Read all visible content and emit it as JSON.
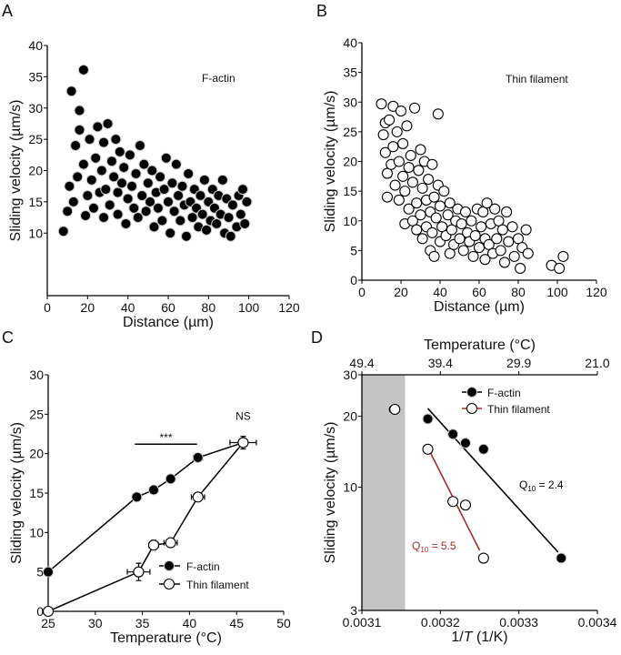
{
  "chart_data": [
    {
      "panel": "A",
      "type": "scatter",
      "annotation": "F-actin",
      "xlabel": "Distance (µm)",
      "ylabel": "Sliding velocity (µm/s)",
      "xlim": [
        0,
        120
      ],
      "ylim": [
        0,
        40
      ],
      "xticks": [
        0,
        20,
        40,
        60,
        80,
        100,
        120
      ],
      "yticks": [
        10,
        15,
        20,
        25,
        30,
        35,
        40
      ],
      "marker": "filled",
      "points": [
        [
          8,
          10.3
        ],
        [
          10,
          13.5
        ],
        [
          11,
          17.5
        ],
        [
          12,
          32.7
        ],
        [
          13,
          15
        ],
        [
          14,
          24
        ],
        [
          15,
          19
        ],
        [
          16,
          26.5
        ],
        [
          16,
          29.6
        ],
        [
          18,
          36.1
        ],
        [
          18,
          21
        ],
        [
          19,
          12.8
        ],
        [
          20,
          16
        ],
        [
          21,
          25
        ],
        [
          22,
          18.5
        ],
        [
          23,
          14
        ],
        [
          24,
          22
        ],
        [
          25,
          27
        ],
        [
          26,
          16.5
        ],
        [
          27,
          20
        ],
        [
          28,
          12.5
        ],
        [
          28,
          24.5
        ],
        [
          29,
          17
        ],
        [
          30,
          27.5
        ],
        [
          31,
          14.5
        ],
        [
          32,
          21.5
        ],
        [
          33,
          19
        ],
        [
          34,
          25
        ],
        [
          35,
          13
        ],
        [
          35,
          16.5
        ],
        [
          36,
          23
        ],
        [
          37,
          18
        ],
        [
          38,
          20.5
        ],
        [
          39,
          11.5
        ],
        [
          40,
          15.5
        ],
        [
          41,
          22.5
        ],
        [
          42,
          17.5
        ],
        [
          43,
          14
        ],
        [
          44,
          19.5
        ],
        [
          45,
          12.5
        ],
        [
          46,
          24
        ],
        [
          47,
          16
        ],
        [
          48,
          21
        ],
        [
          49,
          13.5
        ],
        [
          50,
          18
        ],
        [
          51,
          15
        ],
        [
          52,
          20
        ],
        [
          53,
          11
        ],
        [
          54,
          16.5
        ],
        [
          55,
          14
        ],
        [
          56,
          19
        ],
        [
          57,
          12
        ],
        [
          58,
          17
        ],
        [
          59,
          22
        ],
        [
          60,
          15
        ],
        [
          61,
          10
        ],
        [
          62,
          18
        ],
        [
          63,
          13.5
        ],
        [
          64,
          21
        ],
        [
          65,
          16
        ],
        [
          66,
          12
        ],
        [
          67,
          17.5
        ],
        [
          68,
          14.5
        ],
        [
          69,
          9.5
        ],
        [
          70,
          19.5
        ],
        [
          71,
          15
        ],
        [
          72,
          12.5
        ],
        [
          73,
          17
        ],
        [
          74,
          14
        ],
        [
          75,
          11
        ],
        [
          76,
          16
        ],
        [
          77,
          13
        ],
        [
          78,
          18.5
        ],
        [
          79,
          10.5
        ],
        [
          80,
          15
        ],
        [
          81,
          12
        ],
        [
          82,
          17
        ],
        [
          83,
          14
        ],
        [
          84,
          11.5
        ],
        [
          85,
          16
        ],
        [
          86,
          13
        ],
        [
          87,
          18.5
        ],
        [
          88,
          10
        ],
        [
          89,
          15.5
        ],
        [
          90,
          12.5
        ],
        [
          91,
          9.5
        ],
        [
          92,
          14.5
        ],
        [
          94,
          11
        ],
        [
          95,
          16
        ],
        [
          96,
          13
        ],
        [
          97,
          17
        ],
        [
          98,
          11.5
        ],
        [
          99,
          15
        ]
      ]
    },
    {
      "panel": "B",
      "type": "scatter",
      "annotation": "Thin filament",
      "xlabel": "Distance (µm)",
      "ylabel": "Sliding velocity (µm/s)",
      "xlim": [
        0,
        120
      ],
      "ylim": [
        0,
        40
      ],
      "xticks": [
        0,
        20,
        40,
        60,
        80,
        100,
        120
      ],
      "yticks": [
        0,
        5,
        10,
        15,
        20,
        25,
        30,
        35,
        40
      ],
      "marker": "open",
      "points": [
        [
          10,
          29.7
        ],
        [
          11,
          24.5
        ],
        [
          12,
          21.5
        ],
        [
          12,
          26.5
        ],
        [
          13,
          18
        ],
        [
          13,
          14
        ],
        [
          14,
          27
        ],
        [
          15,
          19.5
        ],
        [
          16,
          22.5
        ],
        [
          16,
          29.3
        ],
        [
          17,
          16
        ],
        [
          18,
          25
        ],
        [
          19,
          13.5
        ],
        [
          19,
          20
        ],
        [
          20,
          28.5
        ],
        [
          21,
          17.5
        ],
        [
          21,
          23
        ],
        [
          22,
          9.5
        ],
        [
          22,
          15
        ],
        [
          23,
          26
        ],
        [
          24,
          12
        ],
        [
          24,
          19
        ],
        [
          25,
          21
        ],
        [
          26,
          10
        ],
        [
          26,
          16.5
        ],
        [
          27,
          29
        ],
        [
          28,
          13
        ],
        [
          28,
          8.5
        ],
        [
          29,
          18.5
        ],
        [
          30,
          11
        ],
        [
          30,
          22
        ],
        [
          31,
          7
        ],
        [
          31,
          15.5
        ],
        [
          32,
          20
        ],
        [
          33,
          9
        ],
        [
          33,
          13.5
        ],
        [
          34,
          17
        ],
        [
          35,
          5
        ],
        [
          35,
          11.5
        ],
        [
          36,
          19.5
        ],
        [
          36,
          8
        ],
        [
          37,
          14
        ],
        [
          37,
          4
        ],
        [
          38,
          10.5
        ],
        [
          39,
          28
        ],
        [
          39,
          16
        ],
        [
          40,
          6.5
        ],
        [
          40,
          12.5
        ],
        [
          41,
          9
        ],
        [
          42,
          15
        ],
        [
          43,
          7.5
        ],
        [
          44,
          11
        ],
        [
          45,
          4.5
        ],
        [
          45,
          13
        ],
        [
          46,
          8.5
        ],
        [
          47,
          6
        ],
        [
          48,
          10
        ],
        [
          49,
          12
        ],
        [
          50,
          7
        ],
        [
          51,
          9.5
        ],
        [
          52,
          5
        ],
        [
          53,
          11.5
        ],
        [
          54,
          8
        ],
        [
          55,
          6.5
        ],
        [
          56,
          10
        ],
        [
          57,
          4
        ],
        [
          58,
          7.5
        ],
        [
          59,
          12
        ],
        [
          60,
          5.5
        ],
        [
          61,
          9
        ],
        [
          62,
          11.5
        ],
        [
          63,
          3.5
        ],
        [
          63,
          7
        ],
        [
          64,
          13
        ],
        [
          65,
          6
        ],
        [
          66,
          9.5
        ],
        [
          67,
          4.5
        ],
        [
          68,
          12
        ],
        [
          69,
          7
        ],
        [
          70,
          10
        ],
        [
          71,
          5
        ],
        [
          72,
          8.5
        ],
        [
          73,
          3
        ],
        [
          74,
          11.5
        ],
        [
          75,
          6.5
        ],
        [
          77,
          9
        ],
        [
          78,
          4
        ],
        [
          80,
          7
        ],
        [
          81,
          2
        ],
        [
          82,
          5.5
        ],
        [
          84,
          8.5
        ],
        [
          85,
          4.5
        ],
        [
          97,
          2.5
        ],
        [
          101,
          2
        ],
        [
          103,
          4
        ]
      ]
    },
    {
      "panel": "C",
      "type": "line",
      "xlabel": "Temperature (°C)",
      "ylabel": "Sliding velocity (µm/s)",
      "xlim": [
        25,
        50
      ],
      "ylim": [
        0,
        30
      ],
      "xticks": [
        25,
        30,
        35,
        40,
        45,
        50
      ],
      "yticks": [
        0,
        5,
        10,
        15,
        20,
        25,
        30
      ],
      "series": [
        {
          "name": "F-actin",
          "marker": "filled",
          "x": [
            25,
            34.4,
            36.2,
            38,
            40.9,
            45.7
          ],
          "y": [
            5,
            14.5,
            15.4,
            16.8,
            19.5,
            21.4
          ]
        },
        {
          "name": "Thin filament",
          "marker": "open",
          "x": [
            25,
            34.6,
            36.2,
            38,
            40.9,
            45.7
          ],
          "y": [
            0,
            5,
            8.4,
            8.7,
            14.5,
            21.4
          ]
        }
      ],
      "annotations": {
        "significance": "***",
        "ns": "NS"
      },
      "legend": "bottom-right"
    },
    {
      "panel": "D",
      "type": "scatter",
      "title": "Temperature (°C)",
      "xlabel": "1/T (1/K)",
      "xlabel_pre": "1/",
      "xlabel_italic": "T",
      "xlabel_post": " (1/K)",
      "ylabel": "Sliding velocity (µm/s)",
      "xlim": [
        0.0031,
        0.0034
      ],
      "ylim": [
        3,
        30
      ],
      "yscale": "log",
      "xticks": [
        "0.0031",
        "0.0032",
        "0.0033",
        "0.0034"
      ],
      "yticks": [
        3,
        10,
        20,
        30
      ],
      "top_ticks": [
        "49.4",
        "39.4",
        "29.9",
        "21.0"
      ],
      "excluded_region": [
        0.0031,
        0.003155
      ],
      "series": [
        {
          "name": "F-actin",
          "marker": "filled",
          "color": "#000000",
          "x": [
            0.003184,
            0.003216,
            0.003232,
            0.003255,
            0.003354,
            0.00314
          ],
          "y": [
            19.5,
            16.8,
            15.4,
            14.5,
            5,
            21.4
          ],
          "fit": [
            [
              0.003184,
              21.6
            ],
            [
              0.00335,
              5.3
            ]
          ],
          "q10_label": "Q",
          "q10_sub": "10",
          "q10_value": " = 2.4"
        },
        {
          "name": "Thin filament",
          "marker": "open",
          "color": "#a52a2a",
          "x": [
            0.003184,
            0.003216,
            0.003232,
            0.003255,
            0.003142
          ],
          "y": [
            14.5,
            8.7,
            8.4,
            5,
            21.4
          ],
          "fit": [
            [
              0.003186,
              14.3
            ],
            [
              0.00325,
              5.4
            ]
          ],
          "q10_label": "Q",
          "q10_sub": "10",
          "q10_value": " = 5.5"
        }
      ],
      "legend": "top-right"
    }
  ],
  "panel_labels": [
    "A",
    "B",
    "C",
    "D"
  ]
}
